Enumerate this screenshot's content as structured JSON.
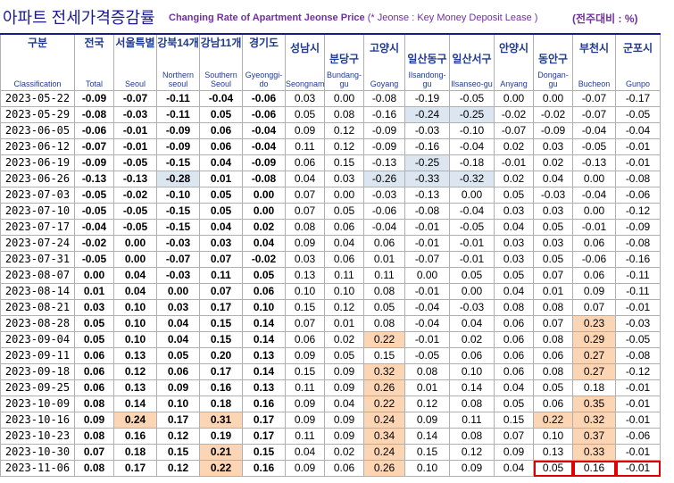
{
  "title": {
    "korean": "아파트 전세가격증감률",
    "english": "Changing Rate of Apartment Jeonse Price",
    "note": "(* Jeonse : Key Money Deposit Lease )",
    "unit": "(전주대비 : %)"
  },
  "columns": [
    {
      "kr": "구분",
      "en": "Classification"
    },
    {
      "kr": "전국",
      "en": "Total"
    },
    {
      "kr": "서울특별",
      "en": "Seoul"
    },
    {
      "kr": "강북14개",
      "en": "Northern seoul"
    },
    {
      "kr": "강남11개",
      "en": "Southern Seoul"
    },
    {
      "kr": "경기도",
      "en": "Gyeonggi-do"
    },
    {
      "kr": "성남시",
      "en": "Seongnam"
    },
    {
      "kr": "분당구",
      "en": "Bundang-gu"
    },
    {
      "kr": "고양시",
      "en": "Goyang"
    },
    {
      "kr": "일산동구",
      "en": "Ilsandong-gu"
    },
    {
      "kr": "일산서구",
      "en": "Ilsanseo-gu"
    },
    {
      "kr": "안양시",
      "en": "Anyang"
    },
    {
      "kr": "동안구",
      "en": "Dongan-gu"
    },
    {
      "kr": "부천시",
      "en": "Bucheon"
    },
    {
      "kr": "군포시",
      "en": "Gunpo"
    }
  ],
  "rows": [
    [
      "2023-05-22",
      "-0.09",
      "-0.07",
      "-0.11",
      "-0.04",
      "-0.06",
      "0.03",
      "0.00",
      "-0.08",
      "-0.19",
      "-0.05",
      "0.00",
      "0.00",
      "-0.07",
      "-0.17"
    ],
    [
      "2023-05-29",
      "-0.08",
      "-0.03",
      "-0.11",
      "0.05",
      "-0.06",
      "0.05",
      "0.08",
      "-0.16",
      "-0.24",
      "-0.25",
      "-0.02",
      "-0.02",
      "-0.07",
      "-0.05"
    ],
    [
      "2023-06-05",
      "-0.06",
      "-0.01",
      "-0.09",
      "0.06",
      "-0.04",
      "0.09",
      "0.12",
      "-0.09",
      "-0.03",
      "-0.10",
      "-0.07",
      "-0.09",
      "-0.04",
      "-0.04"
    ],
    [
      "2023-06-12",
      "-0.07",
      "-0.01",
      "-0.09",
      "0.06",
      "-0.04",
      "0.11",
      "0.12",
      "-0.09",
      "-0.16",
      "-0.04",
      "0.02",
      "0.03",
      "-0.05",
      "-0.01"
    ],
    [
      "2023-06-19",
      "-0.09",
      "-0.05",
      "-0.15",
      "0.04",
      "-0.09",
      "0.06",
      "0.15",
      "-0.13",
      "-0.25",
      "-0.18",
      "-0.01",
      "0.02",
      "-0.13",
      "-0.01"
    ],
    [
      "2023-06-26",
      "-0.13",
      "-0.13",
      "-0.28",
      "0.01",
      "-0.08",
      "0.04",
      "0.03",
      "-0.26",
      "-0.33",
      "-0.32",
      "0.02",
      "0.04",
      "0.00",
      "-0.08"
    ],
    [
      "2023-07-03",
      "-0.05",
      "-0.02",
      "-0.10",
      "0.05",
      "0.00",
      "0.07",
      "0.00",
      "-0.03",
      "-0.13",
      "0.00",
      "0.05",
      "-0.03",
      "-0.04",
      "-0.06"
    ],
    [
      "2023-07-10",
      "-0.05",
      "-0.05",
      "-0.15",
      "0.05",
      "0.00",
      "0.07",
      "0.05",
      "-0.06",
      "-0.08",
      "-0.04",
      "0.03",
      "0.03",
      "0.00",
      "-0.12"
    ],
    [
      "2023-07-17",
      "-0.04",
      "-0.05",
      "-0.15",
      "0.04",
      "0.02",
      "0.08",
      "0.06",
      "-0.04",
      "-0.01",
      "-0.05",
      "0.04",
      "0.05",
      "-0.01",
      "-0.09"
    ],
    [
      "2023-07-24",
      "-0.02",
      "0.00",
      "-0.03",
      "0.03",
      "0.04",
      "0.09",
      "0.04",
      "0.06",
      "-0.01",
      "-0.01",
      "0.03",
      "0.03",
      "0.06",
      "-0.08"
    ],
    [
      "2023-07-31",
      "-0.05",
      "0.00",
      "-0.07",
      "0.07",
      "-0.02",
      "0.03",
      "0.06",
      "0.01",
      "-0.07",
      "-0.01",
      "0.03",
      "0.05",
      "-0.06",
      "-0.16"
    ],
    [
      "2023-08-07",
      "0.00",
      "0.04",
      "-0.03",
      "0.11",
      "0.05",
      "0.13",
      "0.11",
      "0.11",
      "0.00",
      "0.05",
      "0.05",
      "0.07",
      "0.06",
      "-0.11"
    ],
    [
      "2023-08-14",
      "0.01",
      "0.04",
      "0.00",
      "0.07",
      "0.06",
      "0.10",
      "0.10",
      "0.08",
      "-0.01",
      "0.00",
      "0.04",
      "0.01",
      "0.09",
      "-0.11"
    ],
    [
      "2023-08-21",
      "0.03",
      "0.10",
      "0.03",
      "0.17",
      "0.10",
      "0.15",
      "0.12",
      "0.05",
      "-0.04",
      "-0.03",
      "0.08",
      "0.08",
      "0.07",
      "-0.01"
    ],
    [
      "2023-08-28",
      "0.05",
      "0.10",
      "0.04",
      "0.15",
      "0.14",
      "0.07",
      "0.01",
      "0.08",
      "-0.04",
      "0.04",
      "0.06",
      "0.07",
      "0.23",
      "-0.03"
    ],
    [
      "2023-09-04",
      "0.05",
      "0.10",
      "0.04",
      "0.15",
      "0.14",
      "0.06",
      "0.02",
      "0.22",
      "-0.01",
      "0.02",
      "0.06",
      "0.08",
      "0.29",
      "-0.05"
    ],
    [
      "2023-09-11",
      "0.06",
      "0.13",
      "0.05",
      "0.20",
      "0.13",
      "0.09",
      "0.05",
      "0.15",
      "-0.05",
      "0.06",
      "0.06",
      "0.06",
      "0.27",
      "-0.08"
    ],
    [
      "2023-09-18",
      "0.06",
      "0.12",
      "0.06",
      "0.17",
      "0.14",
      "0.15",
      "0.09",
      "0.32",
      "0.08",
      "0.10",
      "0.06",
      "0.08",
      "0.27",
      "-0.12"
    ],
    [
      "2023-09-25",
      "0.06",
      "0.13",
      "0.09",
      "0.16",
      "0.13",
      "0.11",
      "0.09",
      "0.26",
      "0.01",
      "0.14",
      "0.04",
      "0.05",
      "0.18",
      "-0.01"
    ],
    [
      "2023-10-09",
      "0.08",
      "0.14",
      "0.10",
      "0.18",
      "0.16",
      "0.09",
      "0.04",
      "0.22",
      "0.12",
      "0.08",
      "0.05",
      "0.06",
      "0.35",
      "-0.01"
    ],
    [
      "2023-10-16",
      "0.09",
      "0.24",
      "0.17",
      "0.31",
      "0.17",
      "0.09",
      "0.09",
      "0.24",
      "0.09",
      "0.11",
      "0.15",
      "0.22",
      "0.32",
      "-0.01"
    ],
    [
      "2023-10-23",
      "0.08",
      "0.16",
      "0.12",
      "0.19",
      "0.17",
      "0.11",
      "0.09",
      "0.34",
      "0.14",
      "0.08",
      "0.07",
      "0.10",
      "0.37",
      "-0.06"
    ],
    [
      "2023-10-30",
      "0.07",
      "0.18",
      "0.15",
      "0.21",
      "0.15",
      "0.04",
      "0.02",
      "0.24",
      "0.15",
      "0.12",
      "0.09",
      "0.13",
      "0.33",
      "-0.01"
    ],
    [
      "2023-11-06",
      "0.08",
      "0.17",
      "0.12",
      "0.22",
      "0.16",
      "0.09",
      "0.06",
      "0.26",
      "0.10",
      "0.09",
      "0.04",
      "0.05",
      "0.16",
      "-0.01"
    ]
  ],
  "highlight_orange": [
    [
      14,
      13
    ],
    [
      15,
      8
    ],
    [
      15,
      13
    ],
    [
      16,
      13
    ],
    [
      17,
      8
    ],
    [
      17,
      13
    ],
    [
      18,
      8
    ],
    [
      19,
      8
    ],
    [
      19,
      13
    ],
    [
      20,
      2
    ],
    [
      20,
      4
    ],
    [
      20,
      8
    ],
    [
      20,
      12
    ],
    [
      20,
      13
    ],
    [
      21,
      8
    ],
    [
      21,
      13
    ],
    [
      22,
      4
    ],
    [
      22,
      8
    ],
    [
      22,
      13
    ],
    [
      23,
      4
    ],
    [
      23,
      8
    ]
  ],
  "highlight_blue": [
    [
      1,
      9
    ],
    [
      1,
      10
    ],
    [
      4,
      9
    ],
    [
      5,
      3
    ],
    [
      5,
      8
    ],
    [
      5,
      9
    ],
    [
      5,
      10
    ]
  ],
  "red_boxed": [
    [
      23,
      12
    ],
    [
      23,
      13
    ],
    [
      23,
      14
    ]
  ],
  "colors": {
    "title": "#1a1a8c",
    "subtitle": "#7030a0",
    "highlight": "#fcd5b4",
    "highlight_blue": "#dce6f1",
    "box": "#e00000"
  }
}
